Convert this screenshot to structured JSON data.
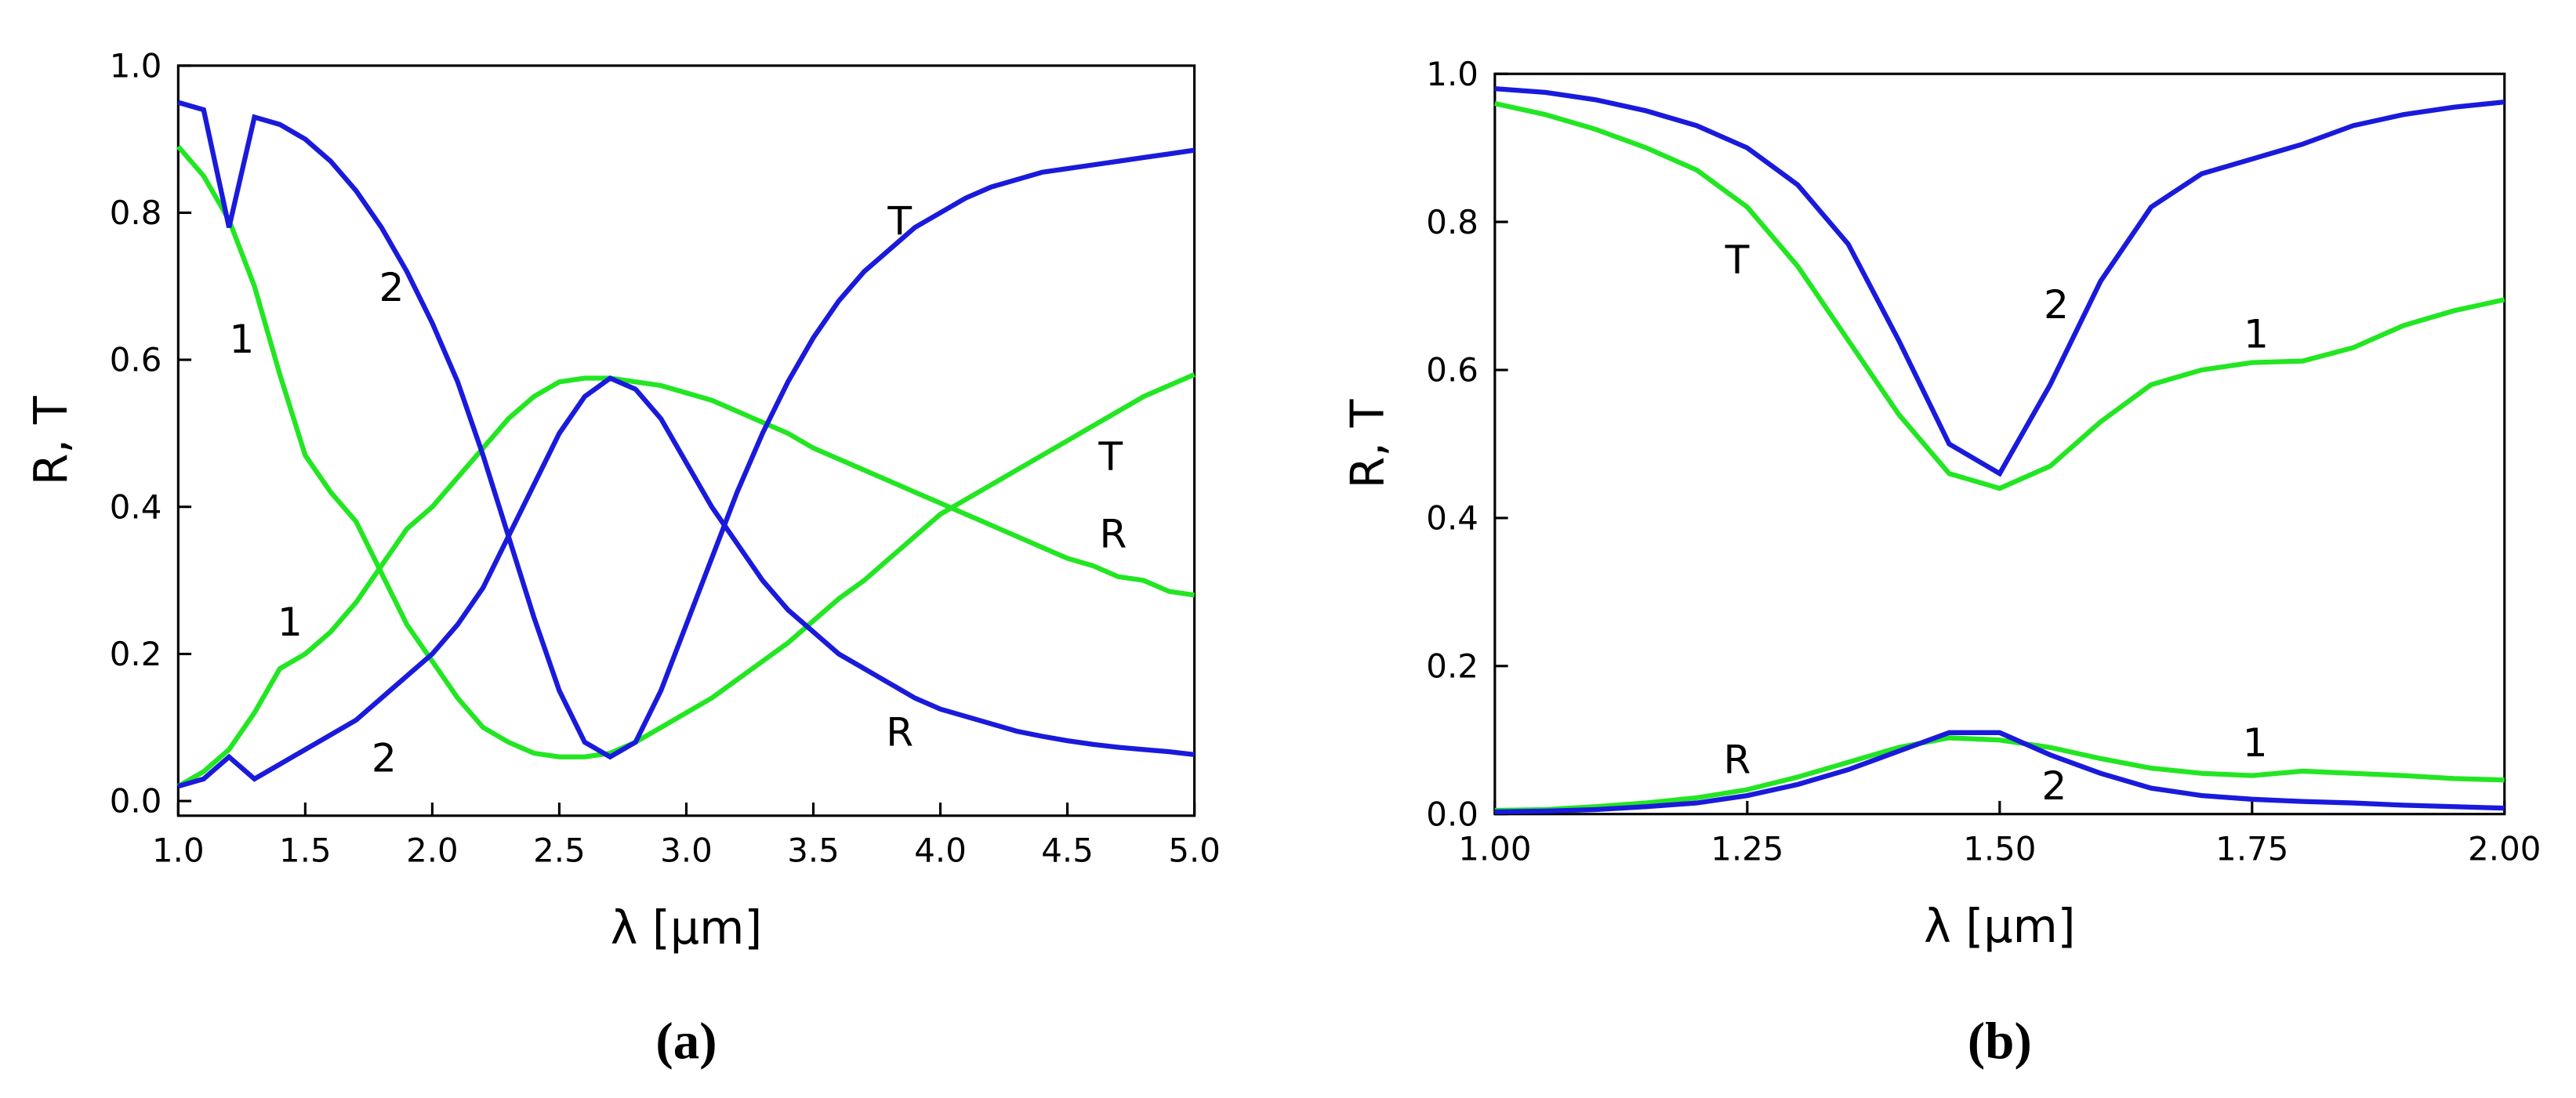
{
  "chart_data": [
    {
      "type": "line",
      "label": "(a)",
      "xlabel": "λ [μm]",
      "ylabel": "R, T",
      "xlim": [
        1.0,
        5.0
      ],
      "ylim": [
        -0.02,
        1.0
      ],
      "xticks": [
        {
          "value": 1.0,
          "label": "1.0"
        },
        {
          "value": 1.5,
          "label": "1.5"
        },
        {
          "value": 2.0,
          "label": "2.0"
        },
        {
          "value": 2.5,
          "label": "2.5"
        },
        {
          "value": 3.0,
          "label": "3.0"
        },
        {
          "value": 3.5,
          "label": "3.5"
        },
        {
          "value": 4.0,
          "label": "4.0"
        },
        {
          "value": 4.5,
          "label": "4.5"
        },
        {
          "value": 5.0,
          "label": "5.0"
        }
      ],
      "yticks": [
        {
          "value": 0,
          "label": "0.0"
        },
        {
          "value": 0.2,
          "label": "0.2"
        },
        {
          "value": 0.4,
          "label": "0.4"
        },
        {
          "value": 0.6,
          "label": "0.6"
        },
        {
          "value": 0.8,
          "label": "0.8"
        },
        {
          "value": 1.0,
          "label": "1.0"
        }
      ],
      "x": [
        1.0,
        1.1,
        1.2,
        1.3,
        1.4,
        1.5,
        1.6,
        1.7,
        1.8,
        1.9,
        2.0,
        2.1,
        2.2,
        2.3,
        2.4,
        2.5,
        2.6,
        2.7,
        2.8,
        2.9,
        3.0,
        3.1,
        3.2,
        3.3,
        3.4,
        3.5,
        3.6,
        3.7,
        3.8,
        3.9,
        4.0,
        4.1,
        4.2,
        4.3,
        4.4,
        4.5,
        4.6,
        4.7,
        4.8,
        4.9,
        5.0
      ],
      "series": [
        {
          "color": "#22e622",
          "values": [
            0.02,
            0.04,
            0.07,
            0.12,
            0.18,
            0.2,
            0.23,
            0.27,
            0.32,
            0.37,
            0.4,
            0.44,
            0.48,
            0.52,
            0.55,
            0.57,
            0.575,
            0.575,
            0.57,
            0.565,
            0.555,
            0.545,
            0.53,
            0.515,
            0.5,
            0.48,
            0.465,
            0.45,
            0.435,
            0.42,
            0.405,
            0.39,
            0.375,
            0.36,
            0.345,
            0.33,
            0.32,
            0.305,
            0.3,
            0.285,
            0.28
          ]
        },
        {
          "color": "#22e622",
          "values": [
            0.89,
            0.85,
            0.79,
            0.7,
            0.58,
            0.47,
            0.42,
            0.38,
            0.31,
            0.24,
            0.19,
            0.14,
            0.1,
            0.08,
            0.065,
            0.06,
            0.06,
            0.065,
            0.08,
            0.1,
            0.12,
            0.14,
            0.165,
            0.19,
            0.215,
            0.245,
            0.275,
            0.3,
            0.33,
            0.36,
            0.39,
            0.41,
            0.43,
            0.45,
            0.47,
            0.49,
            0.51,
            0.53,
            0.55,
            0.565,
            0.58
          ]
        },
        {
          "color": "#1a1adc",
          "values": [
            0.02,
            0.03,
            0.06,
            0.03,
            0.05,
            0.07,
            0.09,
            0.11,
            0.14,
            0.17,
            0.2,
            0.24,
            0.29,
            0.36,
            0.43,
            0.5,
            0.55,
            0.575,
            0.56,
            0.52,
            0.46,
            0.4,
            0.35,
            0.3,
            0.26,
            0.23,
            0.2,
            0.18,
            0.16,
            0.14,
            0.125,
            0.115,
            0.105,
            0.095,
            0.088,
            0.082,
            0.077,
            0.073,
            0.07,
            0.067,
            0.063
          ]
        },
        {
          "color": "#1a1adc",
          "values": [
            0.95,
            0.94,
            0.78,
            0.93,
            0.92,
            0.9,
            0.87,
            0.83,
            0.78,
            0.72,
            0.65,
            0.57,
            0.47,
            0.36,
            0.25,
            0.15,
            0.08,
            0.06,
            0.08,
            0.15,
            0.24,
            0.33,
            0.42,
            0.5,
            0.57,
            0.63,
            0.68,
            0.72,
            0.75,
            0.78,
            0.8,
            0.82,
            0.835,
            0.845,
            0.855,
            0.86,
            0.865,
            0.87,
            0.875,
            0.88,
            0.885
          ]
        }
      ],
      "annotations": [
        {
          "text": "T",
          "x": 3.84,
          "y": 0.79
        },
        {
          "text": "2",
          "x": 1.84,
          "y": 0.7
        },
        {
          "text": "1",
          "x": 1.25,
          "y": 0.63
        },
        {
          "text": "1",
          "x": 1.44,
          "y": 0.245
        },
        {
          "text": "2",
          "x": 1.81,
          "y": 0.06
        },
        {
          "text": "R",
          "x": 3.84,
          "y": 0.095
        },
        {
          "text": "T",
          "x": 4.67,
          "y": 0.47
        },
        {
          "text": "R",
          "x": 4.68,
          "y": 0.365
        }
      ]
    },
    {
      "type": "line",
      "label": "(b)",
      "xlabel": "λ [μm]",
      "ylabel": "R, T",
      "xlim": [
        1.0,
        2.0
      ],
      "ylim": [
        0,
        1.0
      ],
      "xticks": [
        {
          "value": 1.0,
          "label": "1.00"
        },
        {
          "value": 1.25,
          "label": "1.25"
        },
        {
          "value": 1.5,
          "label": "1.50"
        },
        {
          "value": 1.75,
          "label": "1.75"
        },
        {
          "value": 2.0,
          "label": "2.00"
        }
      ],
      "yticks": [
        {
          "value": 0,
          "label": "0.0"
        },
        {
          "value": 0.2,
          "label": "0.2"
        },
        {
          "value": 0.4,
          "label": "0.4"
        },
        {
          "value": 0.6,
          "label": "0.6"
        },
        {
          "value": 0.8,
          "label": "0.8"
        },
        {
          "value": 1.0,
          "label": "1.0"
        }
      ],
      "x": [
        1.0,
        1.05,
        1.1,
        1.15,
        1.2,
        1.25,
        1.3,
        1.35,
        1.4,
        1.45,
        1.5,
        1.55,
        1.6,
        1.65,
        1.7,
        1.75,
        1.8,
        1.85,
        1.9,
        1.95,
        2.0
      ],
      "series": [
        {
          "color": "#22e622",
          "values": [
            0.005,
            0.006,
            0.01,
            0.015,
            0.022,
            0.033,
            0.05,
            0.07,
            0.09,
            0.103,
            0.1,
            0.09,
            0.075,
            0.062,
            0.055,
            0.052,
            0.058,
            0.055,
            0.052,
            0.048,
            0.046
          ]
        },
        {
          "color": "#22e622",
          "values": [
            0.96,
            0.945,
            0.925,
            0.9,
            0.87,
            0.82,
            0.74,
            0.64,
            0.54,
            0.46,
            0.44,
            0.47,
            0.53,
            0.58,
            0.6,
            0.61,
            0.612,
            0.63,
            0.66,
            0.68,
            0.695
          ]
        },
        {
          "color": "#1a1adc",
          "values": [
            0.003,
            0.004,
            0.006,
            0.01,
            0.015,
            0.025,
            0.04,
            0.06,
            0.085,
            0.11,
            0.11,
            0.08,
            0.055,
            0.035,
            0.025,
            0.02,
            0.017,
            0.015,
            0.012,
            0.01,
            0.008
          ]
        },
        {
          "color": "#1a1adc",
          "values": [
            0.98,
            0.975,
            0.965,
            0.95,
            0.93,
            0.9,
            0.85,
            0.77,
            0.64,
            0.5,
            0.46,
            0.58,
            0.72,
            0.82,
            0.865,
            0.885,
            0.905,
            0.93,
            0.945,
            0.955,
            0.962
          ]
        }
      ],
      "annotations": [
        {
          "text": "T",
          "x": 1.24,
          "y": 0.75
        },
        {
          "text": "2",
          "x": 1.556,
          "y": 0.69
        },
        {
          "text": "1",
          "x": 1.754,
          "y": 0.65
        },
        {
          "text": "R",
          "x": 1.24,
          "y": 0.075
        },
        {
          "text": "1",
          "x": 1.753,
          "y": 0.098
        },
        {
          "text": "2",
          "x": 1.554,
          "y": 0.04
        }
      ]
    }
  ]
}
